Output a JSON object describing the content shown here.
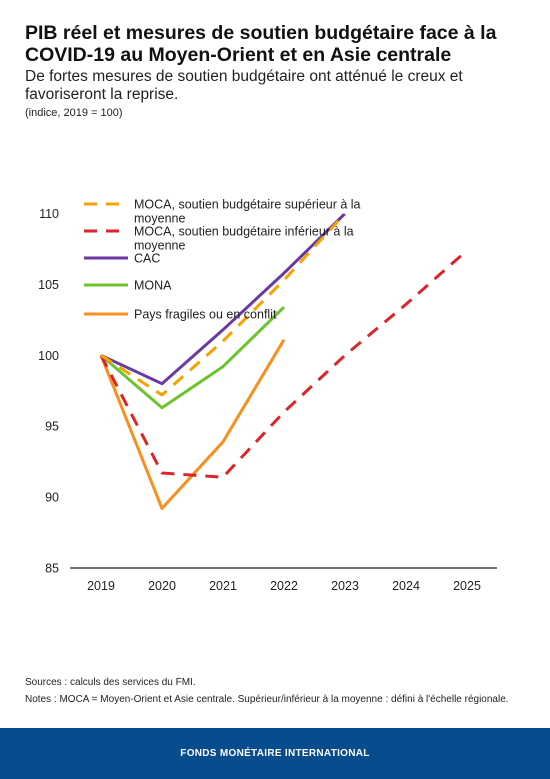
{
  "title": "PIB réel et mesures de soutien budgétaire face à la COVID-19 au Moyen-Orient et en Asie centrale",
  "subtitle": "De fortes mesures de soutien budgétaire ont atténué le creux et favoriseront la reprise.",
  "unit_note": "(indice, 2019 = 100)",
  "sources": "Sources : calculs des services du FMI.",
  "notes": "Notes : MOCA = Moyen-Orient et Asie centrale. Supérieur/inférieur à la moyenne : défini à l'échelle régionale.",
  "footer": "FONDS MONÉTAIRE INTERNATIONAL",
  "chart_data": {
    "type": "line",
    "x": [
      "2019",
      "2020",
      "2021",
      "2022",
      "2023",
      "2024",
      "2025"
    ],
    "ylim": [
      85,
      111
    ],
    "yticks": [
      85,
      90,
      95,
      100,
      105,
      110
    ],
    "legend_position": "top-left",
    "grid": false,
    "series": [
      {
        "name": "MOCA, soutien budgétaire supérieur à la moyenne",
        "color": "#f5a300",
        "dash": true,
        "values": [
          100,
          97.2,
          101.0,
          105.3,
          110.0,
          null,
          null
        ]
      },
      {
        "name": "MOCA, soutien budgétaire inférieur à la moyenne",
        "color": "#d9262c",
        "dash": true,
        "values": [
          100,
          91.7,
          91.4,
          96.0,
          100.0,
          103.6,
          107.4
        ]
      },
      {
        "name": "CAC",
        "color": "#6a3aa0",
        "dash": false,
        "values": [
          100,
          98.0,
          101.8,
          105.8,
          110.0,
          null,
          null
        ]
      },
      {
        "name": "MONA",
        "color": "#6cc32e",
        "dash": false,
        "values": [
          100,
          96.3,
          99.2,
          103.4,
          null,
          null,
          null
        ]
      },
      {
        "name": "Pays fragiles ou en conflit",
        "color": "#f7901e",
        "dash": false,
        "values": [
          100,
          89.2,
          93.9,
          101.1,
          null,
          null,
          null
        ]
      }
    ]
  }
}
